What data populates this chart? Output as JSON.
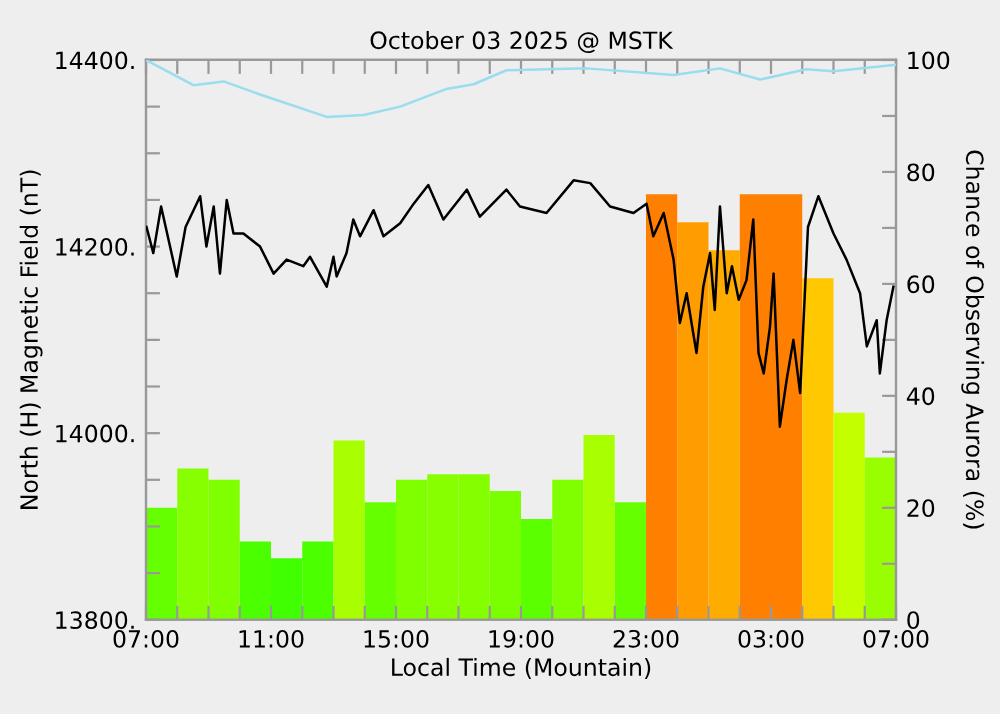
{
  "chart_data": {
    "type": "bar",
    "title": "October 03 2025 @ MSTK",
    "xlabel": "Local Time (Mountain)",
    "ylabel": "North (H) Magnetic Field (nT)",
    "y2label": "Chance of Observing Aurora (%)",
    "xlim": [
      "2025-10-03T07:00",
      "2025-10-04T07:00"
    ],
    "xticks": [
      {
        "value": "2025-10-03T07:00",
        "label": "07:00"
      },
      {
        "value": "2025-10-03T08:00",
        "label": null
      },
      {
        "value": "2025-10-03T09:00",
        "label": null
      },
      {
        "value": "2025-10-03T10:00",
        "label": null
      },
      {
        "value": "2025-10-03T11:00",
        "label": "11:00"
      },
      {
        "value": "2025-10-03T12:00",
        "label": null
      },
      {
        "value": "2025-10-03T13:00",
        "label": null
      },
      {
        "value": "2025-10-03T14:00",
        "label": null
      },
      {
        "value": "2025-10-03T15:00",
        "label": "15:00"
      },
      {
        "value": "2025-10-03T16:00",
        "label": null
      },
      {
        "value": "2025-10-03T17:00",
        "label": null
      },
      {
        "value": "2025-10-03T18:00",
        "label": null
      },
      {
        "value": "2025-10-03T19:00",
        "label": "19:00"
      },
      {
        "value": "2025-10-03T20:00",
        "label": null
      },
      {
        "value": "2025-10-03T21:00",
        "label": null
      },
      {
        "value": "2025-10-03T22:00",
        "label": null
      },
      {
        "value": "2025-10-03T23:00",
        "label": "23:00"
      },
      {
        "value": "2025-10-04T00:00",
        "label": null
      },
      {
        "value": "2025-10-04T01:00",
        "label": null
      },
      {
        "value": "2025-10-04T02:00",
        "label": null
      },
      {
        "value": "2025-10-04T03:00",
        "label": "03:00"
      },
      {
        "value": "2025-10-04T04:00",
        "label": null
      },
      {
        "value": "2025-10-04T05:00",
        "label": null
      },
      {
        "value": "2025-10-04T06:00",
        "label": null
      },
      {
        "value": "2025-10-04T07:00",
        "label": "07:00"
      }
    ],
    "ylim": [
      13800,
      14400
    ],
    "yticks": [
      {
        "value": 13800,
        "label": "13800."
      },
      {
        "value": 13850,
        "label": null
      },
      {
        "value": 13900,
        "label": null
      },
      {
        "value": 13950,
        "label": null
      },
      {
        "value": 14000,
        "label": "14000."
      },
      {
        "value": 14050,
        "label": null
      },
      {
        "value": 14100,
        "label": null
      },
      {
        "value": 14150,
        "label": null
      },
      {
        "value": 14200,
        "label": "14200."
      },
      {
        "value": 14250,
        "label": null
      },
      {
        "value": 14300,
        "label": null
      },
      {
        "value": 14350,
        "label": null
      },
      {
        "value": 14400,
        "label": "14400."
      }
    ],
    "y2lim": [
      0,
      100
    ],
    "y2ticks": [
      0,
      {
        "value": 10,
        "label": null
      },
      20,
      {
        "value": 30,
        "label": null
      },
      40,
      {
        "value": 50,
        "label": null
      },
      60,
      {
        "value": 70,
        "label": null
      },
      80,
      {
        "value": 90,
        "label": null
      },
      100
    ],
    "grid": false,
    "series": [
      {
        "axis": "y2",
        "x": [
          "2025-10-03T07:30",
          "2025-10-03T08:30",
          "2025-10-03T09:30",
          "2025-10-03T10:30",
          "2025-10-03T11:30",
          "2025-10-03T12:30",
          "2025-10-03T13:30",
          "2025-10-03T14:30",
          "2025-10-03T15:30",
          "2025-10-03T16:30",
          "2025-10-03T17:30",
          "2025-10-03T18:30",
          "2025-10-03T19:30",
          "2025-10-03T20:30",
          "2025-10-03T21:30",
          "2025-10-03T22:30",
          "2025-10-03T23:30",
          "2025-10-04T00:30",
          "2025-10-04T01:30",
          "2025-10-04T02:30",
          "2025-10-04T03:30",
          "2025-10-04T04:30",
          "2025-10-04T05:30",
          "2025-10-04T06:30"
        ],
        "values": [
          20,
          27,
          25,
          14,
          11,
          14,
          32,
          21,
          25,
          26,
          26,
          23,
          18,
          25,
          33,
          21,
          76,
          71,
          66,
          76,
          76,
          61,
          37,
          29
        ],
        "colors": [
          "#66ff00",
          "#88ff00",
          "#80ff00",
          "#4cff00",
          "#40ff00",
          "#4cff00",
          "#a8ff00",
          "#66ff00",
          "#80ff00",
          "#88ff00",
          "#84ff00",
          "#7aff00",
          "#5cff00",
          "#80ff00",
          "#a8ff00",
          "#66ff00",
          "#ff8000",
          "#ff9c00",
          "#ffac00",
          "#ff8000",
          "#ff8000",
          "#ffc800",
          "#c4ff00",
          "#99ff00"
        ]
      },
      {
        "type": "line",
        "color": "#99ddee",
        "x": [
          "2025-10-03T07:00",
          "2025-10-03T08:31",
          "2025-10-03T09:29",
          "2025-10-03T10:39",
          "2025-10-03T12:47",
          "2025-10-03T13:58",
          "2025-10-03T15:08",
          "2025-10-03T16:37",
          "2025-10-03T17:29",
          "2025-10-03T18:32",
          "2025-10-03T21:06",
          "2025-10-03T23:53",
          "2025-10-04T01:22",
          "2025-10-04T02:39",
          "2025-10-04T04:08",
          "2025-10-04T05:00",
          "2025-10-04T07:00"
        ],
        "values": [
          14400,
          14373,
          14377,
          14363,
          14339,
          14341,
          14350,
          14369,
          14374,
          14389,
          14391,
          14384,
          14391,
          14379,
          14390,
          14388,
          14395
        ]
      },
      {
        "type": "line",
        "color": "#000000",
        "x": [
          "2025-10-03T07:01",
          "2025-10-03T07:14",
          "2025-10-03T07:29",
          "2025-10-03T07:59",
          "2025-10-03T08:16",
          "2025-10-03T08:44",
          "2025-10-03T08:56",
          "2025-10-03T09:10",
          "2025-10-03T09:22",
          "2025-10-03T09:35",
          "2025-10-03T09:48",
          "2025-10-03T10:07",
          "2025-10-03T10:39",
          "2025-10-03T11:05",
          "2025-10-03T11:30",
          "2025-10-03T12:02",
          "2025-10-03T12:15",
          "2025-10-03T12:47",
          "2025-10-03T13:00",
          "2025-10-03T13:06",
          "2025-10-03T13:25",
          "2025-10-03T13:38",
          "2025-10-03T13:51",
          "2025-10-03T14:17",
          "2025-10-03T14:36",
          "2025-10-03T15:08",
          "2025-10-03T15:34",
          "2025-10-03T16:02",
          "2025-10-03T16:31",
          "2025-10-03T17:16",
          "2025-10-03T17:41",
          "2025-10-03T18:32",
          "2025-10-03T18:58",
          "2025-10-03T19:49",
          "2025-10-03T20:41",
          "2025-10-03T21:13",
          "2025-10-03T21:51",
          "2025-10-03T22:36",
          "2025-10-03T23:01",
          "2025-10-03T23:14",
          "2025-10-03T23:34",
          "2025-10-03T23:53",
          "2025-10-04T00:05",
          "2025-10-04T00:18",
          "2025-10-04T00:37",
          "2025-10-04T00:50",
          "2025-10-04T01:03",
          "2025-10-04T01:12",
          "2025-10-04T01:22",
          "2025-10-04T01:35",
          "2025-10-04T01:45",
          "2025-10-04T01:58",
          "2025-10-04T02:13",
          "2025-10-04T02:26",
          "2025-10-04T02:36",
          "2025-10-04T02:46",
          "2025-10-04T02:58",
          "2025-10-04T03:05",
          "2025-10-04T03:17",
          "2025-10-04T03:30",
          "2025-10-04T03:43",
          "2025-10-04T03:56",
          "2025-10-04T04:11",
          "2025-10-04T04:31",
          "2025-10-04T05:00",
          "2025-10-04T05:25",
          "2025-10-04T05:51",
          "2025-10-04T06:04",
          "2025-10-04T06:23",
          "2025-10-04T06:29",
          "2025-10-04T06:42",
          "2025-10-04T06:55"
        ],
        "values": [
          14221,
          14193,
          14243,
          14168,
          14221,
          14254,
          14200,
          14243,
          14171,
          14250,
          14214,
          14214,
          14200,
          14171,
          14186,
          14179,
          14189,
          14157,
          14189,
          14168,
          14193,
          14229,
          14211,
          14239,
          14211,
          14225,
          14246,
          14266,
          14229,
          14261,
          14232,
          14261,
          14243,
          14236,
          14271,
          14268,
          14243,
          14236,
          14246,
          14211,
          14236,
          14186,
          14118,
          14150,
          14086,
          14157,
          14193,
          14132,
          14243,
          14150,
          14179,
          14143,
          14164,
          14229,
          14086,
          14064,
          14114,
          14171,
          14007,
          14057,
          14100,
          14043,
          14221,
          14254,
          14214,
          14186,
          14150,
          14093,
          14121,
          14064,
          14121,
          14157
        ]
      }
    ]
  }
}
